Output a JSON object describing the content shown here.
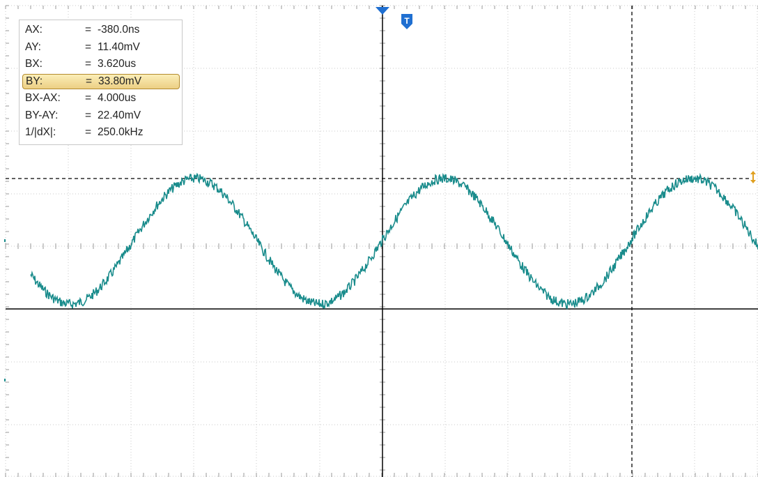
{
  "colors": {
    "background": "#ffffff",
    "grid": "#c8c8c8",
    "axis": "#000000",
    "trace": "#1a8c8c",
    "trigger_marker": "#1f6fd1",
    "cursor_handle": "#e0a020"
  },
  "icons": {
    "trigger_position": "arrow-down-icon",
    "trigger_marker": "T-marker-icon",
    "cursor_handle": "double-arrow-vertical-icon"
  },
  "trigger": {
    "label": "T"
  },
  "cursors": {
    "readouts": [
      {
        "label": "AX:",
        "eq": "=",
        "value": "-380.0ns",
        "highlight": false
      },
      {
        "label": "AY:",
        "eq": "=",
        "value": "11.40mV",
        "highlight": false
      },
      {
        "label": "BX:",
        "eq": "=",
        "value": "3.620us",
        "highlight": false
      },
      {
        "label": "BY:",
        "eq": "=",
        "value": "33.80mV",
        "highlight": true
      },
      {
        "label": "BX-AX:",
        "eq": "=",
        "value": "4.000us",
        "highlight": false
      },
      {
        "label": "BY-AY:",
        "eq": "=",
        "value": "22.40mV",
        "highlight": false
      },
      {
        "label": "1/|dX|:",
        "eq": "=",
        "value": "250.0kHz",
        "highlight": false
      }
    ]
  },
  "waveform": {
    "type": "sine",
    "cycles_visible": 3,
    "noise": "moderate"
  }
}
